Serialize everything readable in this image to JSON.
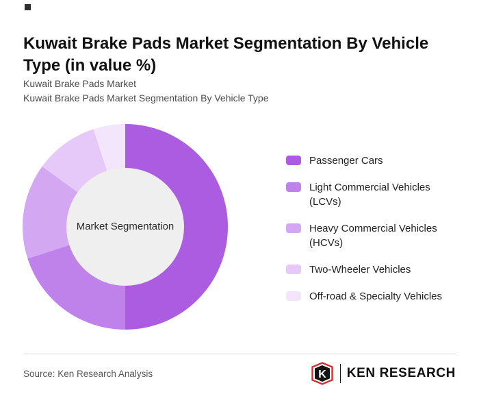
{
  "header": {
    "title": "Kuwait Brake Pads Market Segmentation By Vehicle Type (in value %)",
    "subtitle1": "Kuwait Brake Pads Market",
    "subtitle2": "Kuwait Brake Pads Market Segmentation By Vehicle Type"
  },
  "chart_data": {
    "type": "pie",
    "donut": true,
    "center_label": "Market Segmentation",
    "legend_position": "right",
    "categories": [
      "Passenger Cars",
      "Light Commercial Vehicles (LCVs)",
      "Heavy Commercial Vehicles (HCVs)",
      "Two-Wheeler Vehicles",
      "Off-road & Specialty Vehicles"
    ],
    "values": [
      50,
      20,
      15,
      10,
      5
    ],
    "colors": [
      "#ab5ce0",
      "#bf82ea",
      "#d4a7f2",
      "#e6c9f8",
      "#f3e6fc"
    ],
    "center_fill": "#efefef",
    "units": "value %",
    "title": "Kuwait Brake Pads Market Segmentation By Vehicle Type (in value %)"
  },
  "footer": {
    "source": "Source: Ken Research Analysis",
    "logo_letter": "K",
    "logo_text": "KEN RESEARCH",
    "logo_red": "#d32f2f",
    "logo_black": "#141414"
  }
}
